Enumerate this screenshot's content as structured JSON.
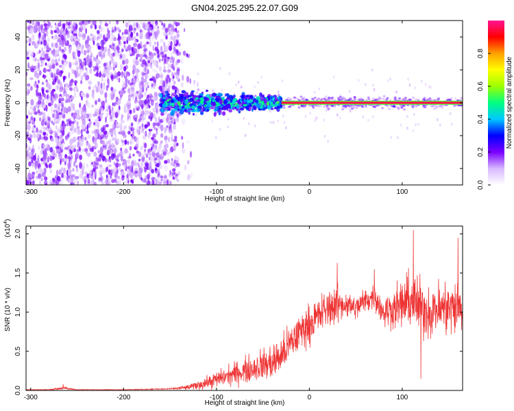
{
  "figure_title": "GN04.2025.295.22.07.G09",
  "chart_data": [
    {
      "type": "heatmap",
      "title": "GN04.2025.295.22.07.G09",
      "xlabel": "Height of straight line (km)",
      "ylabel": "Frequency (Hz)",
      "xlim": [
        -305,
        165
      ],
      "ylim": [
        -50,
        50
      ],
      "x_ticks": [
        -300,
        -200,
        -100,
        0,
        100
      ],
      "y_ticks": [
        -40,
        -20,
        0,
        20,
        40
      ],
      "colorbar": {
        "label": "Normalized spectral amplitude",
        "range": [
          0,
          1
        ],
        "ticks": [
          "0.0",
          "0.2",
          "0.4",
          "0.6",
          "0.8"
        ],
        "colormap": [
          "#ffffff",
          "#d8b8ff",
          "#7a00ff",
          "#0000ff",
          "#00c8ff",
          "#00ff80",
          "#9cff00",
          "#ffff00",
          "#ffa000",
          "#ff0000",
          "#ff1493"
        ]
      },
      "regions": [
        {
          "name": "noise",
          "x_range": [
            -305,
            -140
          ],
          "freq_range": [
            -50,
            50
          ],
          "amplitude": 0.12
        },
        {
          "name": "onset",
          "x_range": [
            -160,
            -30
          ],
          "freq_center": 0,
          "freq_width": 12,
          "amplitude": 0.35
        },
        {
          "name": "stable tone",
          "x_range": [
            -30,
            165
          ],
          "freq_center": 0,
          "freq_width": 3,
          "amplitude": 0.95
        }
      ]
    },
    {
      "type": "line",
      "xlabel": "Height of straight line (km)",
      "ylabel": "SNR (10 * v/v)",
      "y_multiplier": "(x10^4)",
      "multiplier_base": "(x10",
      "multiplier_exp": "4",
      "multiplier_close": ")",
      "xlim": [
        -305,
        165
      ],
      "ylim": [
        0,
        2.1
      ],
      "x_ticks": [
        -300,
        -200,
        -100,
        0,
        100
      ],
      "y_ticks": [
        "0.0",
        "0.5",
        "1.0",
        "1.5",
        "2.0"
      ],
      "color": "#ee3333",
      "series": [
        {
          "name": "SNR",
          "x": [
            -305,
            -280,
            -265,
            -250,
            -200,
            -150,
            -130,
            -110,
            -90,
            -70,
            -50,
            -40,
            -30,
            -20,
            -10,
            0,
            10,
            20,
            30,
            40,
            50,
            60,
            70,
            80,
            90,
            100,
            110,
            120,
            130,
            140,
            150,
            165
          ],
          "mean": [
            0.01,
            0.01,
            0.03,
            0.01,
            0.01,
            0.02,
            0.04,
            0.1,
            0.18,
            0.25,
            0.33,
            0.35,
            0.45,
            0.6,
            0.75,
            0.85,
            0.95,
            1.05,
            1.1,
            1.1,
            1.05,
            1.15,
            1.2,
            1.0,
            1.05,
            1.1,
            1.15,
            1.05,
            1.0,
            1.05,
            1.05,
            1.05
          ],
          "spread": [
            0.005,
            0.005,
            0.02,
            0.005,
            0.005,
            0.01,
            0.04,
            0.1,
            0.15,
            0.2,
            0.25,
            0.3,
            0.3,
            0.3,
            0.3,
            0.3,
            0.3,
            0.3,
            0.3,
            0.2,
            0.2,
            0.2,
            0.2,
            0.25,
            0.3,
            0.4,
            0.45,
            0.45,
            0.4,
            0.4,
            0.45,
            0.45
          ],
          "peaks": [
            {
              "x": -265,
              "y": 0.08
            },
            {
              "x": 30,
              "y": 1.63
            },
            {
              "x": 70,
              "y": 1.55
            },
            {
              "x": 112,
              "y": 2.05
            },
            {
              "x": 120,
              "y": 0.15
            },
            {
              "x": 160,
              "y": 1.95
            }
          ]
        }
      ]
    }
  ]
}
